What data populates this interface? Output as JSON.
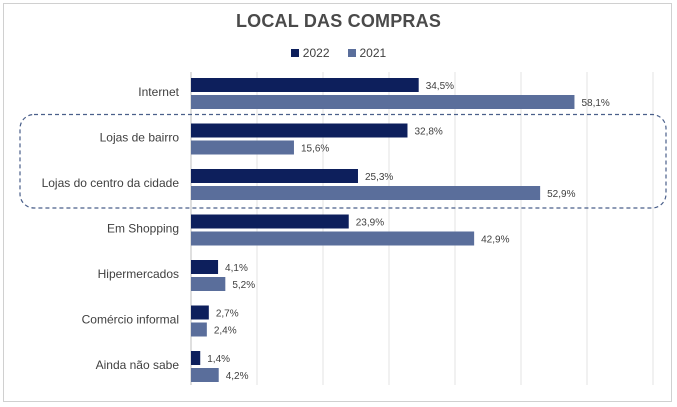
{
  "chart_data": {
    "type": "bar",
    "orientation": "horizontal",
    "title": "LOCAL DAS COMPRAS",
    "categories": [
      "Internet",
      "Lojas de bairro",
      "Lojas do centro da cidade",
      "Em Shopping",
      "Hipermercados",
      "Comércio informal",
      "Ainda não sabe"
    ],
    "series": [
      {
        "name": "2022",
        "color": "#0d1f5c",
        "values": [
          34.5,
          32.8,
          25.3,
          23.9,
          4.1,
          2.7,
          1.4
        ],
        "labels": [
          "34,5%",
          "32,8%",
          "25,3%",
          "23,9%",
          "4,1%",
          "2,7%",
          "1,4%"
        ]
      },
      {
        "name": "2021",
        "color": "#5a6e9b",
        "values": [
          58.1,
          15.6,
          52.9,
          42.9,
          5.2,
          2.4,
          4.2
        ],
        "labels": [
          "58,1%",
          "15,6%",
          "52,9%",
          "42,9%",
          "5,2%",
          "2,4%",
          "4,2%"
        ]
      }
    ],
    "xlim": [
      0,
      70
    ],
    "grid": true,
    "legend_position": "top",
    "highlight": {
      "categories": [
        "Lojas de bairro",
        "Lojas do centro da cidade"
      ],
      "style": "dashed rounded box"
    }
  }
}
